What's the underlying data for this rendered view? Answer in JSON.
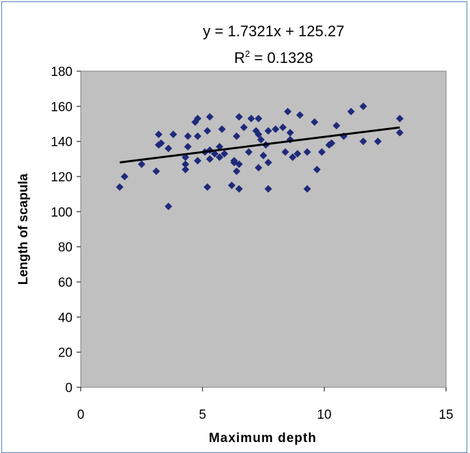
{
  "chart_data": {
    "type": "scatter",
    "title": "",
    "xlabel": "Maximum depth",
    "ylabel": "Length of scapula",
    "xlim": [
      0,
      15
    ],
    "ylim": [
      0,
      180
    ],
    "xticks": [
      "0",
      "5",
      "10",
      "15"
    ],
    "yticks": [
      "0",
      "20",
      "40",
      "60",
      "80",
      "100",
      "120",
      "140",
      "160",
      "180"
    ],
    "grid": false,
    "plot_background": "#c0c0c0",
    "marker_color": "#1f2a7a",
    "trendline": {
      "slope": 1.7321,
      "intercept": 125.27,
      "x_range": [
        1.6,
        13.1
      ],
      "color": "#000000",
      "equation_label": "y = 1.7321x + 125.27",
      "r2_prefix": "R",
      "r2_exp": "2",
      "r2_value": " = 0.1328"
    },
    "series": [
      {
        "points": [
          [
            1.6,
            114
          ],
          [
            1.8,
            120
          ],
          [
            2.5,
            127
          ],
          [
            3.1,
            123
          ],
          [
            3.2,
            138
          ],
          [
            3.2,
            144
          ],
          [
            3.3,
            139
          ],
          [
            3.6,
            136
          ],
          [
            3.6,
            103
          ],
          [
            3.8,
            144
          ],
          [
            4.3,
            131
          ],
          [
            4.3,
            127
          ],
          [
            4.3,
            124
          ],
          [
            4.4,
            143
          ],
          [
            4.4,
            137
          ],
          [
            4.7,
            151
          ],
          [
            4.8,
            153
          ],
          [
            4.8,
            143
          ],
          [
            4.8,
            129
          ],
          [
            5.1,
            134
          ],
          [
            5.2,
            146
          ],
          [
            5.2,
            114
          ],
          [
            5.3,
            154
          ],
          [
            5.3,
            135
          ],
          [
            5.3,
            130
          ],
          [
            5.5,
            133
          ],
          [
            5.7,
            137
          ],
          [
            5.7,
            131
          ],
          [
            5.8,
            147
          ],
          [
            5.9,
            133
          ],
          [
            6.2,
            115
          ],
          [
            6.3,
            129
          ],
          [
            6.3,
            128
          ],
          [
            6.4,
            143
          ],
          [
            6.4,
            123
          ],
          [
            6.5,
            154
          ],
          [
            6.5,
            127
          ],
          [
            6.5,
            113
          ],
          [
            6.7,
            148
          ],
          [
            6.9,
            134
          ],
          [
            7.0,
            153
          ],
          [
            7.2,
            146
          ],
          [
            7.3,
            153
          ],
          [
            7.3,
            144
          ],
          [
            7.3,
            125
          ],
          [
            7.4,
            141
          ],
          [
            7.5,
            132
          ],
          [
            7.6,
            138
          ],
          [
            7.7,
            146
          ],
          [
            7.7,
            128
          ],
          [
            7.7,
            113
          ],
          [
            8.0,
            147
          ],
          [
            8.3,
            148
          ],
          [
            8.4,
            134
          ],
          [
            8.5,
            157
          ],
          [
            8.6,
            141
          ],
          [
            8.6,
            145
          ],
          [
            8.7,
            131
          ],
          [
            8.9,
            133
          ],
          [
            9.0,
            155
          ],
          [
            9.3,
            134
          ],
          [
            9.3,
            113
          ],
          [
            9.6,
            151
          ],
          [
            9.7,
            124
          ],
          [
            9.9,
            134
          ],
          [
            10.2,
            138
          ],
          [
            10.3,
            139
          ],
          [
            10.5,
            149
          ],
          [
            10.8,
            143
          ],
          [
            11.1,
            157
          ],
          [
            11.6,
            160
          ],
          [
            11.6,
            140
          ],
          [
            12.2,
            140
          ],
          [
            13.1,
            153
          ],
          [
            13.1,
            145
          ]
        ]
      }
    ]
  }
}
